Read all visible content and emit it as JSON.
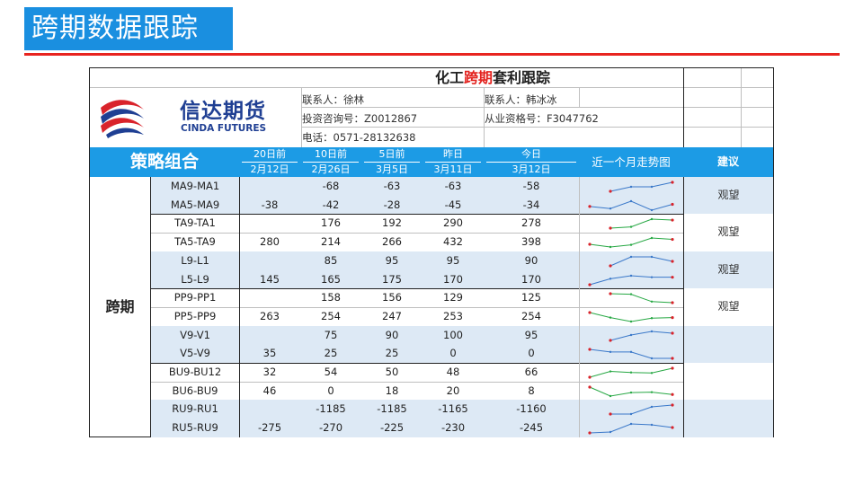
{
  "slide": {
    "banner_title": "跨期数据跟踪"
  },
  "sheet": {
    "title_prefix": "化工",
    "title_red": "跨期",
    "title_suffix": "套利跟踪",
    "logo_cn": "信达期货",
    "logo_en": "CINDA FUTURES",
    "contact1": "联系人：徐林",
    "contact2": "联系人：韩冰冰",
    "license1": "投资咨询号：Z0012867",
    "license2": "从业资格号：F3047762",
    "phone": "电话：0571-28132638"
  },
  "header": {
    "strategy": "策略组合",
    "cols": [
      {
        "top": "20日前",
        "bottom": "2月12日"
      },
      {
        "top": "10日前",
        "bottom": "2月26日"
      },
      {
        "top": "5日前",
        "bottom": "3月5日"
      },
      {
        "top": "昨日",
        "bottom": "3月11日"
      },
      {
        "top": "今日",
        "bottom": "3月12日"
      }
    ],
    "trend": "近一个月走势图",
    "advice": "建议"
  },
  "category": "跨期",
  "rows": [
    {
      "name": "MA9-MA1",
      "v": [
        "",
        "-68",
        "-63",
        "-63",
        "-58"
      ],
      "spark": [
        null,
        -68,
        -63,
        -63,
        -58
      ],
      "color": "#3a78c9"
    },
    {
      "name": "MA5-MA9",
      "v": [
        "-38",
        "-42",
        "-28",
        "-45",
        "-34"
      ],
      "spark": [
        -38,
        -42,
        -28,
        -45,
        -34
      ],
      "color": "#3a78c9"
    },
    {
      "name": "TA9-TA1",
      "v": [
        "",
        "176",
        "192",
        "290",
        "278"
      ],
      "spark": [
        null,
        176,
        192,
        290,
        278
      ],
      "color": "#27a844"
    },
    {
      "name": "TA5-TA9",
      "v": [
        "280",
        "214",
        "266",
        "432",
        "398"
      ],
      "spark": [
        280,
        214,
        266,
        432,
        398
      ],
      "color": "#27a844"
    },
    {
      "name": "L9-L1",
      "v": [
        "",
        "85",
        "95",
        "95",
        "90"
      ],
      "spark": [
        null,
        85,
        95,
        95,
        90
      ],
      "color": "#3a78c9"
    },
    {
      "name": "L5-L9",
      "v": [
        "145",
        "165",
        "175",
        "170",
        "170"
      ],
      "spark": [
        145,
        165,
        175,
        170,
        170
      ],
      "color": "#3a78c9"
    },
    {
      "name": "PP9-PP1",
      "v": [
        "",
        "158",
        "156",
        "129",
        "125"
      ],
      "spark": [
        null,
        158,
        156,
        129,
        125
      ],
      "color": "#27a844"
    },
    {
      "name": "PP5-PP9",
      "v": [
        "263",
        "254",
        "247",
        "253",
        "254"
      ],
      "spark": [
        263,
        254,
        247,
        253,
        254
      ],
      "color": "#27a844"
    },
    {
      "name": "V9-V1",
      "v": [
        "",
        "75",
        "90",
        "100",
        "95"
      ],
      "spark": [
        null,
        75,
        90,
        100,
        95
      ],
      "color": "#3a78c9"
    },
    {
      "name": "V5-V9",
      "v": [
        "35",
        "25",
        "25",
        "0",
        "0"
      ],
      "spark": [
        35,
        25,
        25,
        0,
        0
      ],
      "color": "#3a78c9"
    },
    {
      "name": "BU9-BU12",
      "v": [
        "32",
        "54",
        "50",
        "48",
        "66"
      ],
      "spark": [
        32,
        54,
        50,
        48,
        66
      ],
      "color": "#27a844"
    },
    {
      "name": "BU6-BU9",
      "v": [
        "46",
        "0",
        "18",
        "20",
        "8"
      ],
      "spark": [
        46,
        0,
        18,
        20,
        8
      ],
      "color": "#27a844"
    },
    {
      "name": "RU9-RU1",
      "v": [
        "",
        "-1185",
        "-1185",
        "-1165",
        "-1160"
      ],
      "spark": [
        null,
        -1185,
        -1185,
        -1165,
        -1160
      ],
      "color": "#3a78c9"
    },
    {
      "name": "RU5-RU9",
      "v": [
        "-275",
        "-270",
        "-225",
        "-230",
        "-245"
      ],
      "spark": [
        -275,
        -270,
        -225,
        -230,
        -245
      ],
      "color": "#3a78c9"
    }
  ],
  "advice": [
    "观望",
    "观望",
    "观望",
    "观望",
    "",
    "",
    ""
  ]
}
